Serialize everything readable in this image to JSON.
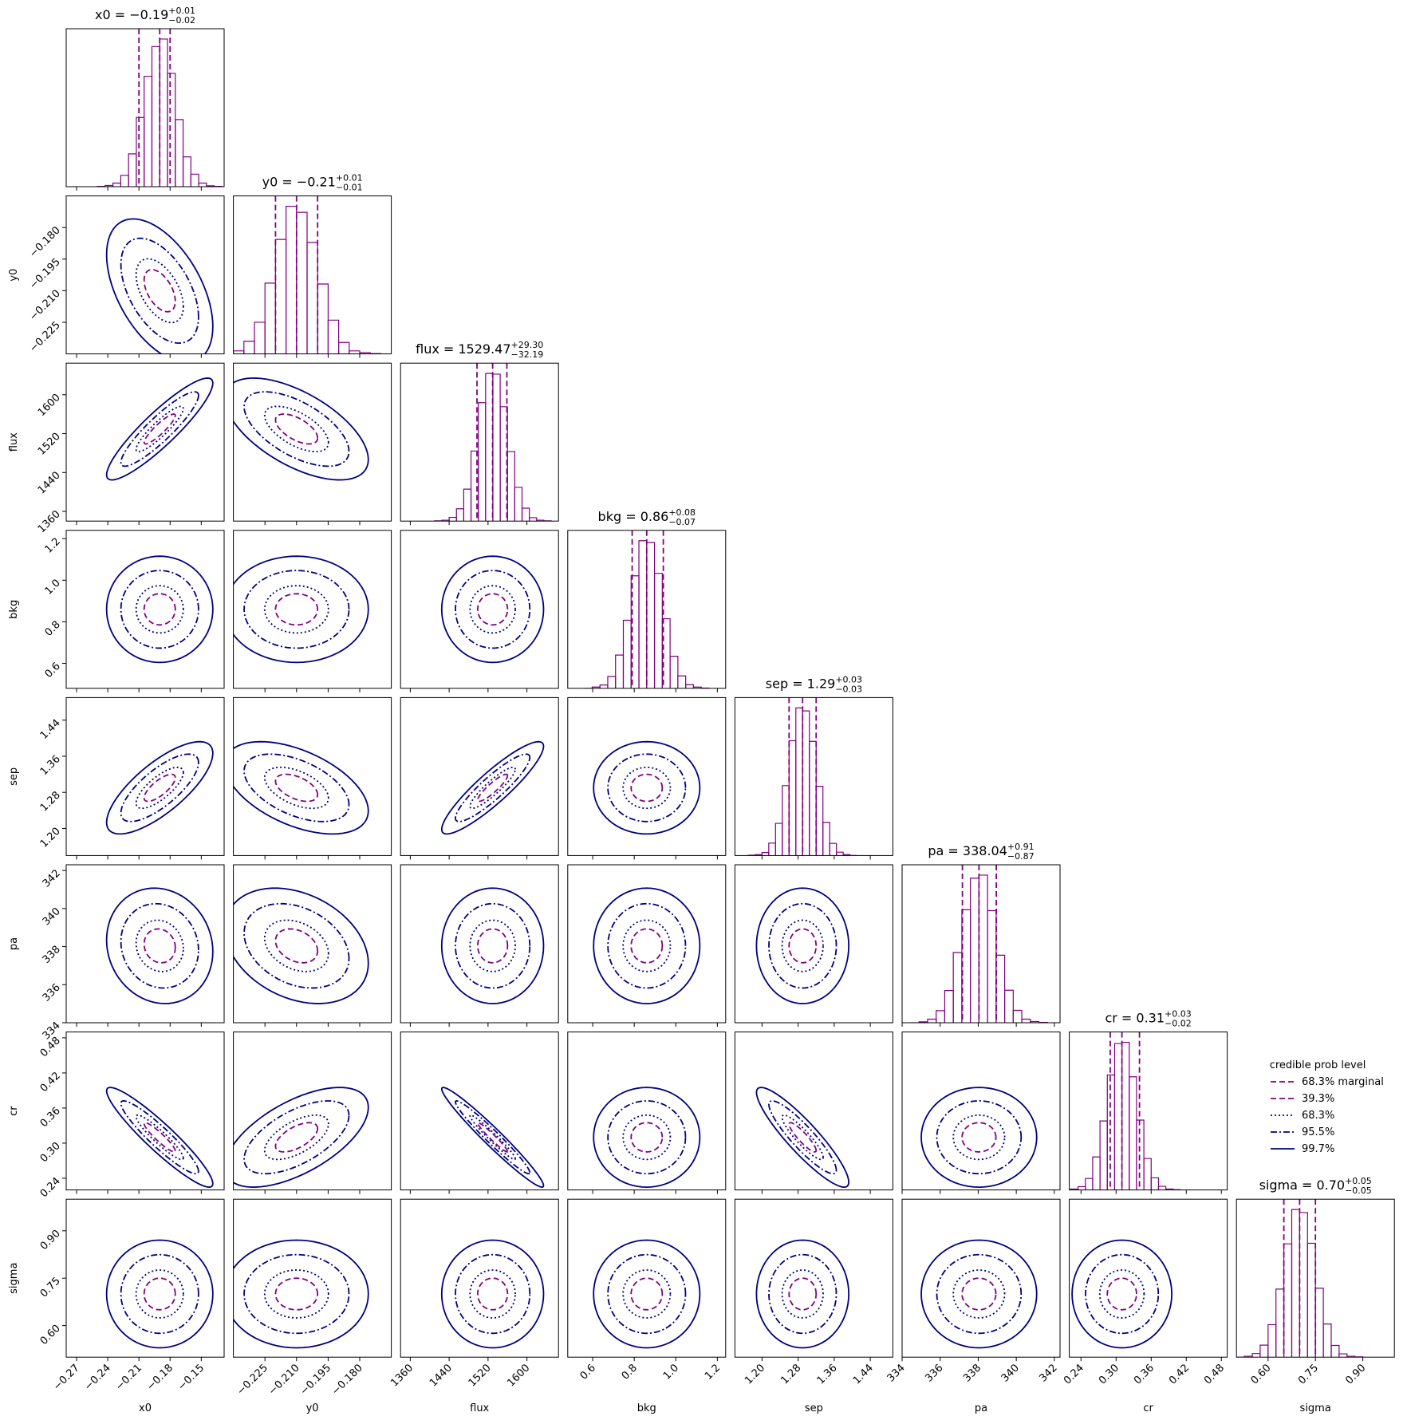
{
  "chart_data": {
    "type": "corner",
    "legend": {
      "title": "credible prob level",
      "corner": "right",
      "entries": [
        {
          "name": "68.3% marginal",
          "color": "#800080",
          "dash": "dashed"
        },
        {
          "name": "39.3%",
          "level": 39.3,
          "color": "#800080",
          "dash": "dashed"
        },
        {
          "name": "68.3%",
          "level": 68.3,
          "color": "#000080",
          "dash": "dotted"
        },
        {
          "name": "95.5%",
          "level": 95.5,
          "color": "#000080",
          "dash": "dashdot"
        },
        {
          "name": "99.7%",
          "level": 99.7,
          "color": "#000080",
          "dash": "solid"
        }
      ]
    },
    "hist_color": "#800080",
    "parameters": [
      {
        "name": "x0",
        "title": "x0 = −0.19",
        "title_plus": "+0.01",
        "title_minus": "−0.02",
        "median": -0.19,
        "err_plus": 0.01,
        "err_minus": 0.02,
        "lim": [
          -0.28,
          -0.128
        ],
        "ticks": [
          {
            "value": -0.27,
            "label": "−0.27"
          },
          {
            "value": -0.24,
            "label": "−0.24"
          },
          {
            "value": -0.21,
            "label": "−0.21"
          },
          {
            "value": -0.18,
            "label": "−0.18"
          },
          {
            "value": -0.15,
            "label": "−0.15"
          }
        ],
        "bins": [
          -0.25,
          -0.2425,
          -0.235,
          -0.2275,
          -0.22,
          -0.2125,
          -0.205,
          -0.1975,
          -0.19,
          -0.1825,
          -0.175,
          -0.1675,
          -0.16,
          -0.1525,
          -0.145,
          -0.1375,
          -0.13
        ],
        "counts": [
          1,
          4,
          12,
          38,
          110,
          232,
          370,
          470,
          495,
          380,
          225,
          100,
          42,
          12,
          3,
          1
        ]
      },
      {
        "name": "y0",
        "title": "y0 = −0.21",
        "title_plus": "+0.01",
        "title_minus": "−0.01",
        "median": -0.21,
        "err_plus": 0.01,
        "err_minus": 0.01,
        "lim": [
          -0.24,
          -0.165
        ],
        "ticks": [
          {
            "value": -0.225,
            "label": "−0.225"
          },
          {
            "value": -0.21,
            "label": "−0.210"
          },
          {
            "value": -0.195,
            "label": "−0.195"
          },
          {
            "value": -0.18,
            "label": "−0.180"
          }
        ],
        "bins": [
          -0.25,
          -0.245,
          -0.24,
          -0.235,
          -0.23,
          -0.225,
          -0.22,
          -0.215,
          -0.21,
          -0.205,
          -0.2,
          -0.195,
          -0.19,
          -0.185,
          -0.18,
          -0.175,
          -0.17
        ],
        "counts": [
          0,
          2,
          10,
          42,
          105,
          235,
          380,
          490,
          470,
          370,
          232,
          112,
          38,
          10,
          4,
          1
        ]
      },
      {
        "name": "flux",
        "title": "flux = 1529.47",
        "title_plus": "+29.30",
        "title_minus": "−32.19",
        "median": 1529.47,
        "err_plus": 29.3,
        "err_minus": 32.19,
        "lim": [
          1340,
          1665
        ],
        "ticks": [
          1360,
          1440,
          1520,
          1600
        ],
        "bins": [
          1410,
          1425,
          1440,
          1455,
          1470,
          1485,
          1500,
          1515,
          1530,
          1545,
          1560,
          1575,
          1590,
          1605,
          1620,
          1635,
          1650
        ],
        "counts": [
          1,
          3,
          12,
          40,
          104,
          228,
          385,
          480,
          478,
          372,
          226,
          110,
          42,
          11,
          3,
          1
        ]
      },
      {
        "name": "bkg",
        "title": "bkg = 0.86",
        "title_plus": "+0.08",
        "title_minus": "−0.07",
        "median": 0.86,
        "err_plus": 0.08,
        "err_minus": 0.07,
        "lim": [
          0.48,
          1.24
        ],
        "ticks": [
          0.6,
          0.8,
          {
            "value": 1,
            "label": "1.0"
          },
          1.2
        ],
        "bins": [
          0.56,
          0.5975,
          0.635,
          0.6725,
          0.71,
          0.7475,
          0.785,
          0.8225,
          0.86,
          0.8975,
          0.935,
          0.9725,
          1.01,
          1.0475,
          1.085,
          1.1225,
          1.16
        ],
        "counts": [
          0,
          4,
          11,
          39,
          110,
          225,
          372,
          488,
          482,
          380,
          230,
          106,
          41,
          12,
          4,
          1
        ]
      },
      {
        "name": "sep",
        "title": "sep = 1.29",
        "title_plus": "+0.03",
        "title_minus": "−0.03",
        "median": 1.29,
        "err_plus": 0.03,
        "err_minus": 0.03,
        "lim": [
          1.14,
          1.49
        ],
        "ticks": [
          {
            "value": 1.2,
            "label": "1.20"
          },
          1.28,
          1.36,
          1.44
        ],
        "bins": [
          1.17,
          1.185,
          1.2,
          1.215,
          1.23,
          1.245,
          1.26,
          1.275,
          1.29,
          1.305,
          1.32,
          1.335,
          1.35,
          1.365,
          1.38,
          1.395,
          1.41
        ],
        "counts": [
          1,
          3,
          10,
          41,
          106,
          230,
          378,
          486,
          476,
          376,
          228,
          109,
          40,
          11,
          3,
          0
        ]
      },
      {
        "name": "pa",
        "title": "pa = 338.04",
        "title_plus": "+0.91",
        "title_minus": "−0.87",
        "median": 338.04,
        "err_plus": 0.91,
        "err_minus": 0.87,
        "lim": [
          334,
          342.3
        ],
        "ticks": [
          334,
          336,
          338,
          340,
          342
        ],
        "bins": [
          334.44,
          334.89,
          335.34,
          335.79,
          336.24,
          336.69,
          337.14,
          337.59,
          338.04,
          338.49,
          338.94,
          339.39,
          339.84,
          340.29,
          340.74,
          341.19,
          341.64
        ],
        "counts": [
          0,
          3,
          12,
          40,
          107,
          233,
          375,
          480,
          490,
          372,
          224,
          108,
          41,
          12,
          4,
          1
        ]
      },
      {
        "name": "cr",
        "title": "cr = 0.31",
        "title_plus": "+0.03",
        "title_minus": "−0.02",
        "median": 0.31,
        "err_plus": 0.03,
        "err_minus": 0.02,
        "lim": [
          0.22,
          0.49
        ],
        "ticks": [
          0.24,
          {
            "value": 0.3,
            "label": "0.30"
          },
          0.36,
          0.42,
          0.48
        ],
        "bins": [
          0.21,
          0.2225,
          0.235,
          0.2475,
          0.26,
          0.2725,
          0.285,
          0.2975,
          0.31,
          0.3225,
          0.335,
          0.3475,
          0.36,
          0.3725,
          0.385,
          0.3975,
          0.41
        ],
        "counts": [
          1,
          3,
          11,
          38,
          109,
          228,
          380,
          484,
          488,
          374,
          231,
          104,
          40,
          12,
          3,
          1
        ]
      },
      {
        "name": "sigma",
        "title": "sigma = 0.70",
        "title_plus": "+0.05",
        "title_minus": "−0.05",
        "median": 0.7,
        "err_plus": 0.05,
        "err_minus": 0.05,
        "lim": [
          0.5,
          1.0
        ],
        "ticks": [
          {
            "value": 0.6,
            "label": "0.60"
          },
          0.75,
          {
            "value": 0.9,
            "label": "0.90"
          }
        ],
        "bins": [
          0.5,
          0.525,
          0.55,
          0.575,
          0.6,
          0.625,
          0.65,
          0.675,
          0.7,
          0.725,
          0.75,
          0.775,
          0.8,
          0.825,
          0.85,
          0.875,
          0.9
        ],
        "counts": [
          0,
          3,
          12,
          40,
          108,
          226,
          376,
          490,
          480,
          378,
          229,
          110,
          39,
          11,
          3,
          1
        ]
      }
    ],
    "correlations": [
      [
        -0.5
      ],
      [
        0.9,
        -0.6
      ],
      [
        0,
        0,
        0
      ],
      [
        0.75,
        -0.5,
        0.9,
        0
      ],
      [
        -0.1,
        -0.3,
        0,
        0,
        0
      ],
      [
        -0.93,
        0.6,
        -0.97,
        0,
        -0.9,
        0
      ],
      [
        0,
        0,
        0,
        0,
        0,
        0,
        0
      ]
    ]
  }
}
